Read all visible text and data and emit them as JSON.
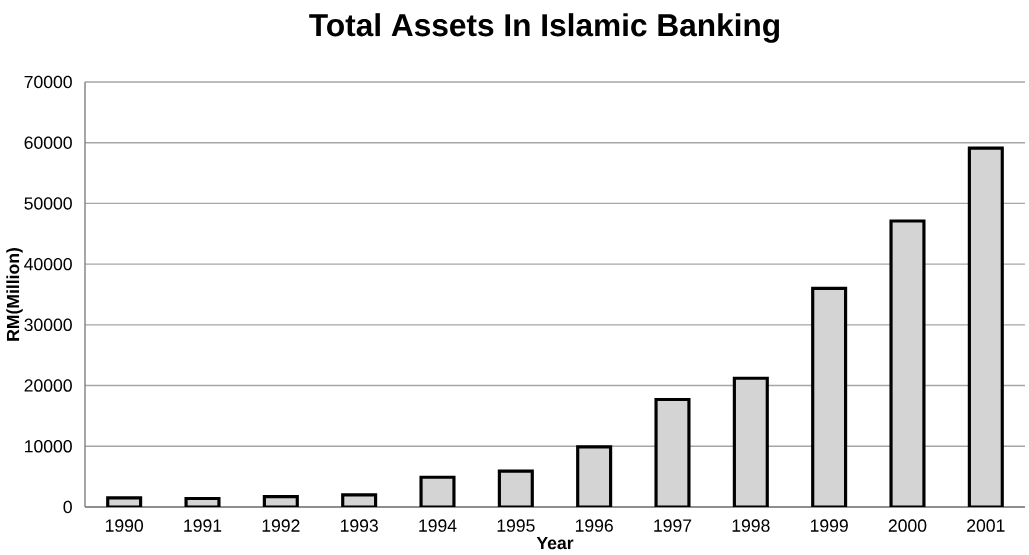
{
  "chart_data": {
    "type": "bar",
    "title": "Total Assets In Islamic Banking",
    "xlabel": "Year",
    "ylabel": "RM(Million)",
    "categories": [
      "1990",
      "1991",
      "1992",
      "1993",
      "1994",
      "1995",
      "1996",
      "1997",
      "1998",
      "1999",
      "2000",
      "2001"
    ],
    "values": [
      1500,
      1400,
      1700,
      2000,
      4900,
      5900,
      9900,
      17700,
      21200,
      36000,
      47100,
      59100
    ],
    "color": "#d4d4d4",
    "ylim": [
      0,
      70000
    ],
    "yticks": [
      0,
      10000,
      20000,
      30000,
      40000,
      50000,
      60000,
      70000
    ],
    "grid": "y"
  }
}
